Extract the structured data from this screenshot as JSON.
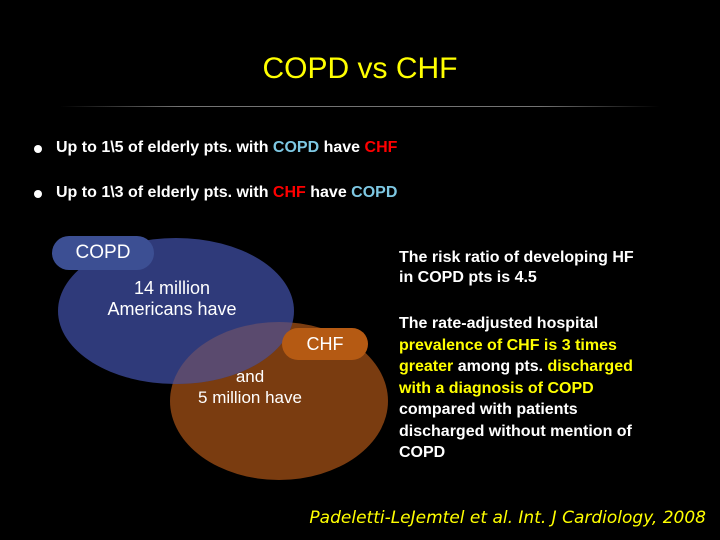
{
  "title": "COPD vs CHF",
  "bullets": [
    {
      "pre": "Up to 1\\5 of elderly pts. with ",
      "term1": "COPD",
      "mid": " have ",
      "term2": "CHF"
    },
    {
      "pre": "Up to 1\\3 of elderly pts. with ",
      "term1": "CHF",
      "mid": " have ",
      "term2": "COPD"
    }
  ],
  "venn": {
    "copd_label": "COPD",
    "copd_line1": "14 million",
    "copd_line2": "Americans have",
    "chf_label": "CHF",
    "chf_line1": "and",
    "chf_line2": "5 million have"
  },
  "risk_text": {
    "line1": "The risk ratio of developing HF",
    "line2": "in COPD pts is 4.5"
  },
  "prevalence": {
    "p1": "The rate-adjusted hospital",
    "p2": "prevalence of CHF is",
    "p3": "3 times",
    "p4": "greater",
    "p5": "among pts.",
    "p6": "discharged",
    "p7": "with a diagnosis of COPD",
    "p8": "compared with patients",
    "p9": "discharged without mention of",
    "p10": "COPD"
  },
  "citation": "Padeletti-LeJemtel et al. Int. J Cardiology, 2008",
  "colors": {
    "title": "#ffff00",
    "copd_text": "#7ec8e3",
    "chf_text": "#ff0000",
    "copd_circle": "#2f3a7a",
    "chf_circle": "#7a3c10"
  }
}
